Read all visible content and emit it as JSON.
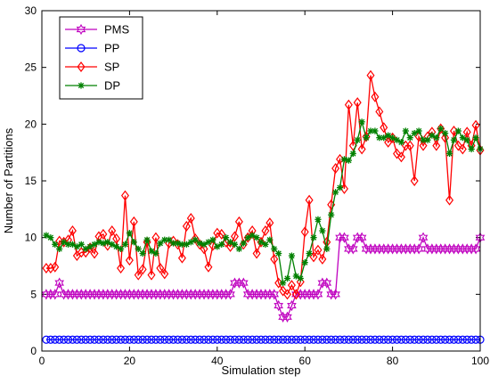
{
  "chart_data": {
    "type": "line",
    "xlabel": "Simulation step",
    "ylabel": "Number of Partitions",
    "xlim": [
      0,
      100
    ],
    "ylim": [
      0,
      30
    ],
    "xticks": [
      0,
      20,
      40,
      60,
      80,
      100
    ],
    "yticks": [
      0,
      5,
      10,
      15,
      20,
      25,
      30
    ],
    "legend_position": "top-left",
    "series": [
      {
        "name": "PMS",
        "color": "#bf00bf",
        "marker": "hexagram",
        "x": [
          1,
          2,
          3,
          4,
          5,
          6,
          7,
          8,
          9,
          10,
          11,
          12,
          13,
          14,
          15,
          16,
          17,
          18,
          19,
          20,
          21,
          22,
          23,
          24,
          25,
          26,
          27,
          28,
          29,
          30,
          31,
          32,
          33,
          34,
          35,
          36,
          37,
          38,
          39,
          40,
          41,
          42,
          43,
          44,
          45,
          46,
          47,
          48,
          49,
          50,
          51,
          52,
          53,
          54,
          55,
          56,
          57,
          58,
          59,
          60,
          61,
          62,
          63,
          64,
          65,
          66,
          67,
          68,
          69,
          70,
          71,
          72,
          73,
          74,
          75,
          76,
          77,
          78,
          79,
          80,
          81,
          82,
          83,
          84,
          85,
          86,
          87,
          88,
          89,
          90,
          91,
          92,
          93,
          94,
          95,
          96,
          97,
          98,
          99,
          100
        ],
        "y": [
          5,
          5,
          5,
          6,
          5,
          5,
          5,
          5,
          5,
          5,
          5,
          5,
          5,
          5,
          5,
          5,
          5,
          5,
          5,
          5,
          5,
          5,
          5,
          5,
          5,
          5,
          5,
          5,
          5,
          5,
          5,
          5,
          5,
          5,
          5,
          5,
          5,
          5,
          5,
          5,
          5,
          5,
          5,
          6,
          6,
          6,
          5,
          5,
          5,
          5,
          5,
          5,
          5,
          4,
          3,
          3,
          4,
          5,
          5,
          5,
          5,
          5,
          5,
          6,
          6,
          5,
          5,
          10,
          10,
          9,
          9,
          10,
          10,
          9,
          9,
          9,
          9,
          9,
          9,
          9,
          9,
          9,
          9,
          9,
          9,
          9,
          10,
          9,
          9,
          9,
          9,
          9,
          9,
          9,
          9,
          9,
          9,
          9,
          9,
          10
        ]
      },
      {
        "name": "PP",
        "color": "#0000ff",
        "marker": "circle",
        "x": [
          1,
          2,
          3,
          4,
          5,
          6,
          7,
          8,
          9,
          10,
          11,
          12,
          13,
          14,
          15,
          16,
          17,
          18,
          19,
          20,
          21,
          22,
          23,
          24,
          25,
          26,
          27,
          28,
          29,
          30,
          31,
          32,
          33,
          34,
          35,
          36,
          37,
          38,
          39,
          40,
          41,
          42,
          43,
          44,
          45,
          46,
          47,
          48,
          49,
          50,
          51,
          52,
          53,
          54,
          55,
          56,
          57,
          58,
          59,
          60,
          61,
          62,
          63,
          64,
          65,
          66,
          67,
          68,
          69,
          70,
          71,
          72,
          73,
          74,
          75,
          76,
          77,
          78,
          79,
          80,
          81,
          82,
          83,
          84,
          85,
          86,
          87,
          88,
          89,
          90,
          91,
          92,
          93,
          94,
          95,
          96,
          97,
          98,
          99,
          100
        ],
        "y": [
          1,
          1,
          1,
          1,
          1,
          1,
          1,
          1,
          1,
          1,
          1,
          1,
          1,
          1,
          1,
          1,
          1,
          1,
          1,
          1,
          1,
          1,
          1,
          1,
          1,
          1,
          1,
          1,
          1,
          1,
          1,
          1,
          1,
          1,
          1,
          1,
          1,
          1,
          1,
          1,
          1,
          1,
          1,
          1,
          1,
          1,
          1,
          1,
          1,
          1,
          1,
          1,
          1,
          1,
          1,
          1,
          1,
          1,
          1,
          1,
          1,
          1,
          1,
          1,
          1,
          1,
          1,
          1,
          1,
          1,
          1,
          1,
          1,
          1,
          1,
          1,
          1,
          1,
          1,
          1,
          1,
          1,
          1,
          1,
          1,
          1,
          1,
          1,
          1,
          1,
          1,
          1,
          1,
          1,
          1,
          1,
          1,
          1,
          1,
          1
        ]
      },
      {
        "name": "SP",
        "color": "#ff0000",
        "marker": "diamond",
        "x": [
          1,
          2,
          3,
          4,
          5,
          6,
          7,
          8,
          9,
          10,
          11,
          12,
          13,
          14,
          15,
          16,
          17,
          18,
          19,
          20,
          21,
          22,
          23,
          24,
          25,
          26,
          27,
          28,
          29,
          30,
          31,
          32,
          33,
          34,
          35,
          36,
          37,
          38,
          39,
          40,
          41,
          42,
          43,
          44,
          45,
          46,
          47,
          48,
          49,
          50,
          51,
          52,
          53,
          54,
          55,
          56,
          57,
          58,
          59,
          60,
          61,
          62,
          63,
          64,
          65,
          66,
          67,
          68,
          69,
          70,
          71,
          72,
          73,
          74,
          75,
          76,
          77,
          78,
          79,
          80,
          81,
          82,
          83,
          84,
          85,
          86,
          87,
          88,
          89,
          90,
          91,
          92,
          93,
          94,
          95,
          96,
          97,
          98,
          99,
          100
        ],
        "y": [
          7.3,
          7.3,
          7.4,
          9.7,
          9.6,
          9.8,
          10.6,
          8.4,
          8.7,
          8.7,
          9.1,
          8.6,
          10.1,
          10.3,
          9.3,
          10.6,
          9.9,
          7.3,
          13.7,
          8.0,
          11.4,
          6.7,
          7.2,
          9.6,
          6.7,
          10.0,
          7.3,
          6.8,
          9.5,
          9.7,
          9.4,
          8.2,
          11.0,
          11.7,
          9.9,
          9.4,
          9.0,
          7.4,
          9.3,
          10.4,
          10.3,
          9.6,
          9.2,
          10.1,
          11.4,
          9.4,
          10.0,
          10.6,
          8.6,
          9.6,
          10.6,
          11.3,
          8.1,
          6.0,
          5.3,
          5.0,
          5.8,
          5.0,
          6.1,
          10.5,
          13.3,
          8.3,
          8.9,
          8.1,
          9.6,
          12.9,
          16.1,
          16.9,
          14.3,
          21.7,
          18.1,
          21.9,
          17.8,
          18.9,
          24.3,
          22.4,
          21.1,
          19.7,
          18.4,
          18.8,
          17.4,
          17.1,
          18.1,
          18.1,
          15.0,
          18.9,
          18.1,
          18.9,
          19.3,
          18.1,
          19.6,
          18.8,
          13.3,
          19.4,
          18.1,
          17.8,
          19.3,
          18.1,
          19.9,
          17.7
        ]
      },
      {
        "name": "DP",
        "color": "#008000",
        "marker": "star",
        "x": [
          1,
          2,
          3,
          4,
          5,
          6,
          7,
          8,
          9,
          10,
          11,
          12,
          13,
          14,
          15,
          16,
          17,
          18,
          19,
          20,
          21,
          22,
          23,
          24,
          25,
          26,
          27,
          28,
          29,
          30,
          31,
          32,
          33,
          34,
          35,
          36,
          37,
          38,
          39,
          40,
          41,
          42,
          43,
          44,
          45,
          46,
          47,
          48,
          49,
          50,
          51,
          52,
          53,
          54,
          55,
          56,
          57,
          58,
          59,
          60,
          61,
          62,
          63,
          64,
          65,
          66,
          67,
          68,
          69,
          70,
          71,
          72,
          73,
          74,
          75,
          76,
          77,
          78,
          79,
          80,
          81,
          82,
          83,
          84,
          85,
          86,
          87,
          88,
          89,
          90,
          91,
          92,
          93,
          94,
          95,
          96,
          97,
          98,
          99,
          100
        ],
        "y": [
          10.2,
          10.0,
          9.4,
          9.0,
          9.6,
          9.4,
          9.4,
          9.2,
          9.4,
          9.0,
          9.2,
          9.4,
          9.6,
          9.5,
          9.6,
          9.4,
          9.2,
          9.0,
          9.4,
          10.4,
          9.6,
          9.0,
          8.6,
          9.8,
          8.8,
          8.6,
          9.5,
          9.8,
          9.8,
          9.5,
          9.5,
          9.4,
          9.4,
          9.6,
          9.8,
          9.5,
          9.4,
          9.6,
          9.8,
          9.2,
          9.4,
          10.0,
          9.6,
          9.4,
          9.0,
          9.5,
          10.0,
          10.2,
          10.0,
          9.6,
          9.4,
          9.8,
          9.0,
          8.6,
          6.0,
          6.4,
          8.4,
          6.6,
          6.4,
          7.8,
          8.6,
          10.0,
          11.6,
          10.6,
          9.0,
          12.0,
          14.0,
          14.4,
          16.9,
          16.8,
          17.4,
          18.6,
          20.2,
          18.8,
          19.4,
          19.4,
          18.8,
          18.8,
          19.0,
          18.8,
          18.6,
          18.4,
          19.4,
          18.8,
          19.2,
          19.4,
          18.6,
          18.6,
          19.0,
          18.8,
          19.6,
          19.2,
          17.4,
          18.6,
          19.4,
          18.8,
          18.6,
          17.8,
          18.8,
          17.8
        ]
      }
    ]
  }
}
